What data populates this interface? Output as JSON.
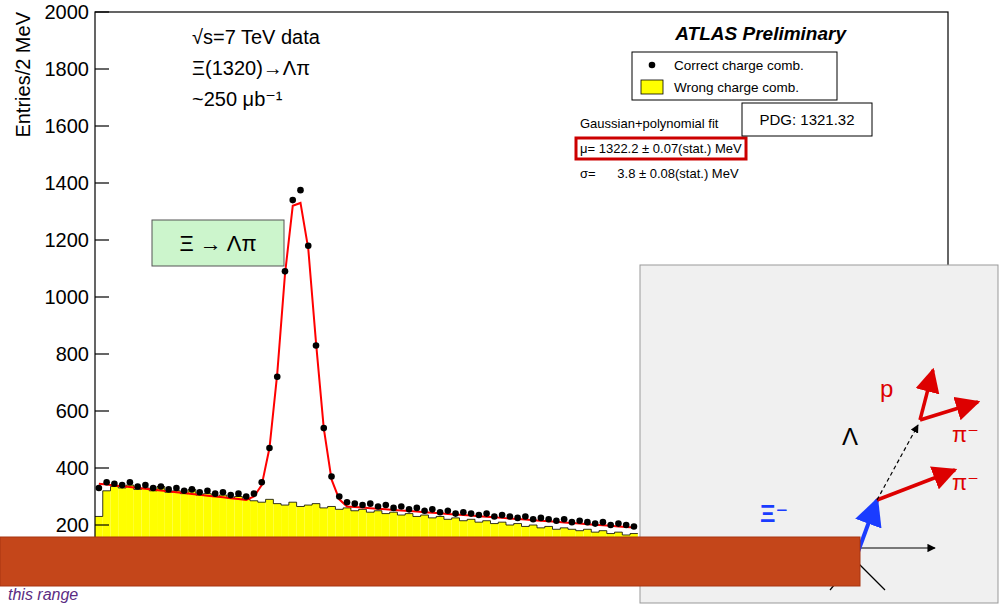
{
  "chart_data": {
    "type": "histogram",
    "y_label": "Entries/2 MeV",
    "annotations": {
      "energy": "√s=7 TeV data",
      "process": "Ξ(1320)→Λπ",
      "luminosity": "~250 μb⁻¹",
      "experiment": "ATLAS Preliminary",
      "fit_title": "Gaussian+polynomial fit",
      "fit_mean": "μ= 1322.2 ± 0.07(stat.) MeV",
      "fit_sigma": "σ=      3.8 ± 0.08(stat.) MeV",
      "pdg": "PDG: 1321.32",
      "decay": "Ξ → Λπ",
      "banner": "this range"
    },
    "xlim": [
      1270,
      1490
    ],
    "ylim": [
      0,
      2000
    ],
    "yticks": [
      200,
      400,
      600,
      800,
      1000,
      1200,
      1400,
      1600,
      1800,
      2000
    ],
    "tick_labels": "y",
    "legend": "top-right",
    "x": [
      1271,
      1273,
      1275,
      1277,
      1279,
      1281,
      1283,
      1285,
      1287,
      1289,
      1291,
      1293,
      1295,
      1297,
      1299,
      1301,
      1303,
      1305,
      1307,
      1309,
      1311,
      1313,
      1315,
      1317,
      1319,
      1321,
      1323,
      1325,
      1327,
      1329,
      1331,
      1333,
      1335,
      1337,
      1339,
      1341,
      1343,
      1345,
      1347,
      1349,
      1351,
      1353,
      1355,
      1357,
      1359,
      1361,
      1363,
      1365,
      1367,
      1369,
      1371,
      1373,
      1375,
      1377,
      1379,
      1381,
      1383,
      1385,
      1387,
      1389,
      1391,
      1393,
      1395,
      1397,
      1399,
      1401,
      1403,
      1405,
      1407,
      1409
    ],
    "bins": [
      1270,
      1272,
      1274,
      1276,
      1278,
      1280,
      1282,
      1284,
      1286,
      1288,
      1290,
      1292,
      1294,
      1296,
      1298,
      1300,
      1302,
      1304,
      1306,
      1308,
      1310,
      1312,
      1314,
      1316,
      1318,
      1320,
      1322,
      1324,
      1326,
      1328,
      1330,
      1332,
      1334,
      1336,
      1338,
      1340,
      1342,
      1344,
      1346,
      1348,
      1350,
      1352,
      1354,
      1356,
      1358,
      1360,
      1362,
      1364,
      1366,
      1368,
      1370,
      1372,
      1374,
      1376,
      1378,
      1380,
      1382,
      1384,
      1386,
      1388,
      1390,
      1392,
      1394,
      1396,
      1398,
      1400,
      1402,
      1404,
      1406,
      1408,
      1410
    ],
    "series": [
      {
        "name": "Correct charge comb.",
        "type": "scatter",
        "marker": "circle",
        "color": "#000000",
        "values": [
          330,
          350,
          345,
          340,
          350,
          335,
          340,
          330,
          335,
          325,
          330,
          320,
          325,
          315,
          320,
          310,
          315,
          305,
          310,
          300,
          310,
          350,
          470,
          720,
          1090,
          1340,
          1375,
          1180,
          830,
          540,
          370,
          300,
          280,
          275,
          270,
          275,
          265,
          270,
          260,
          265,
          255,
          260,
          250,
          255,
          245,
          250,
          240,
          245,
          240,
          235,
          240,
          230,
          235,
          230,
          225,
          230,
          220,
          225,
          220,
          215,
          220,
          210,
          215,
          210,
          205,
          210,
          200,
          205,
          200,
          195
        ]
      },
      {
        "name": "Wrong charge comb.",
        "type": "histogram",
        "color": "#ffff00",
        "values": [
          230,
          320,
          335,
          330,
          340,
          325,
          330,
          320,
          335,
          315,
          320,
          310,
          325,
          305,
          310,
          300,
          305,
          295,
          300,
          290,
          285,
          280,
          290,
          275,
          270,
          280,
          265,
          270,
          275,
          260,
          265,
          255,
          260,
          250,
          255,
          245,
          250,
          240,
          245,
          235,
          240,
          230,
          235,
          225,
          230,
          220,
          225,
          215,
          220,
          210,
          215,
          205,
          210,
          200,
          205,
          195,
          200,
          190,
          195,
          185,
          190,
          185,
          180,
          185,
          175,
          180,
          170,
          175,
          165,
          170
        ]
      },
      {
        "type": "line",
        "line_style": "solid",
        "color": "#ff0000",
        "values": [
          345,
          342,
          339,
          336,
          333,
          330,
          327,
          324,
          321,
          318,
          315,
          312,
          309,
          306,
          303,
          300,
          297,
          294,
          291,
          288,
          300,
          340,
          470,
          730,
          1080,
          1320,
          1330,
          1170,
          840,
          540,
          360,
          290,
          265,
          263,
          261,
          259,
          257,
          255,
          253,
          251,
          249,
          247,
          245,
          243,
          241,
          239,
          237,
          235,
          233,
          231,
          229,
          227,
          225,
          223,
          221,
          219,
          217,
          215,
          213,
          211,
          209,
          207,
          205,
          203,
          201,
          199,
          197,
          195,
          193,
          191
        ]
      }
    ]
  },
  "diagram": {
    "labels": [
      "p",
      "π⁻",
      "Λ",
      "π⁻",
      "Ξ⁻"
    ]
  }
}
